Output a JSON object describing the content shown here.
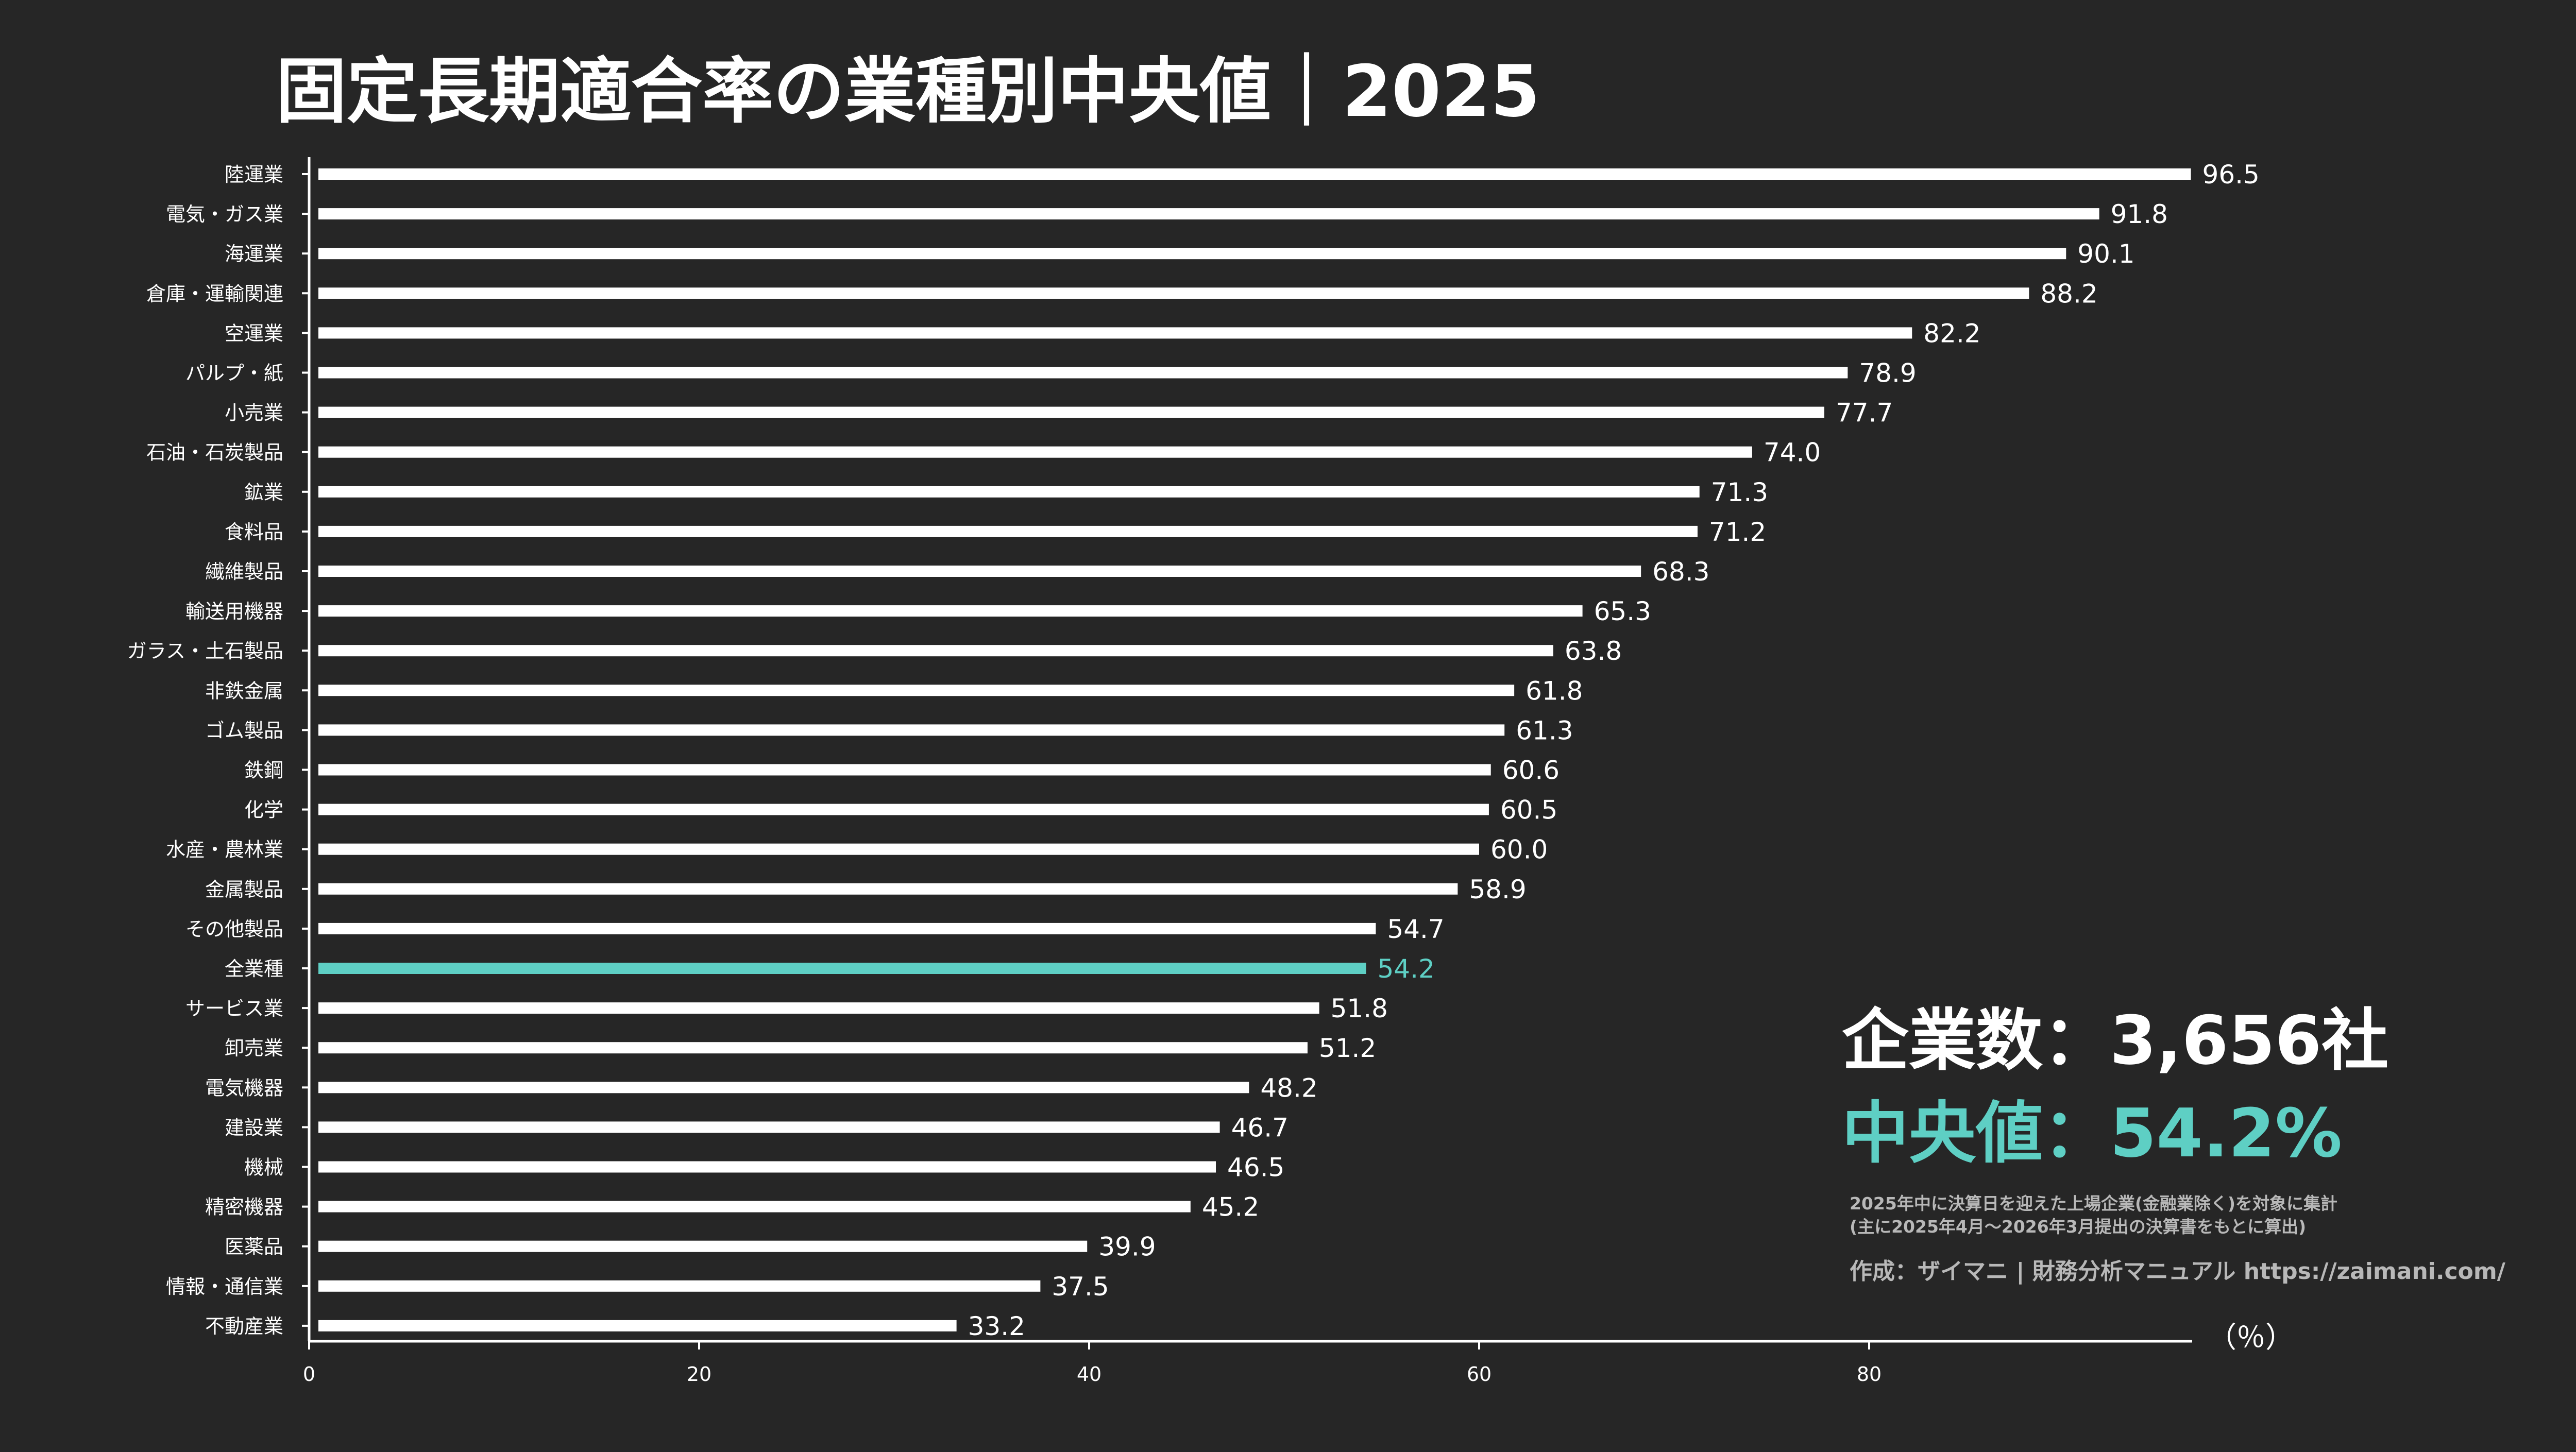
{
  "title": "固定長期適合率の業種別中央値｜2025",
  "summary": {
    "company_count": "企業数：3,656社",
    "median": "中央値：54.2%",
    "note_line1": "2025年中に決算日を迎えた上場企業(金融業除く)を対象に集計",
    "note_line2": "(主に2025年4月〜2026年3月提出の決算書をもとに算出)",
    "credit": "作成：ザイマニ | 財務分析マニュアル https://zaimani.com/"
  },
  "colors": {
    "background": "#262626",
    "bar": "#ffffff",
    "highlight": "#5ecfc4",
    "text": "#ffffff",
    "note": "#b8b8b8"
  },
  "chart_data": {
    "type": "bar",
    "orientation": "horizontal",
    "xlabel": "（％）",
    "xlim": [
      0,
      96.5
    ],
    "xticks": [
      0,
      20,
      40,
      60,
      80
    ],
    "highlight_category": "全業種",
    "grid": false,
    "categories": [
      "陸運業",
      "電気・ガス業",
      "海運業",
      "倉庫・運輸関連",
      "空運業",
      "パルプ・紙",
      "小売業",
      "石油・石炭製品",
      "鉱業",
      "食料品",
      "繊維製品",
      "輸送用機器",
      "ガラス・土石製品",
      "非鉄金属",
      "ゴム製品",
      "鉄鋼",
      "化学",
      "水産・農林業",
      "金属製品",
      "その他製品",
      "全業種",
      "サービス業",
      "卸売業",
      "電気機器",
      "建設業",
      "機械",
      "精密機器",
      "医薬品",
      "情報・通信業",
      "不動産業"
    ],
    "values": [
      96.5,
      91.8,
      90.1,
      88.2,
      82.2,
      78.9,
      77.7,
      74.0,
      71.3,
      71.2,
      68.3,
      65.3,
      63.8,
      61.8,
      61.3,
      60.6,
      60.5,
      60.0,
      58.9,
      54.7,
      54.2,
      51.8,
      51.2,
      48.2,
      46.7,
      46.5,
      45.2,
      39.9,
      37.5,
      33.2
    ]
  }
}
